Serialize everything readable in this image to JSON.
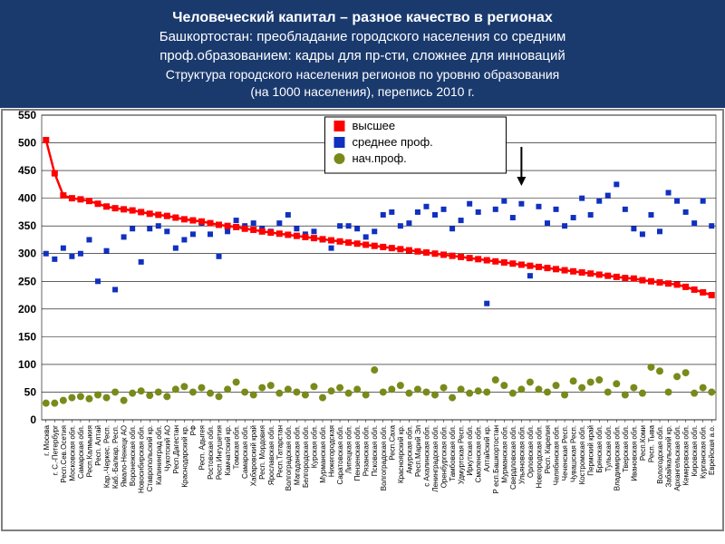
{
  "header": {
    "title": "Человеческий капитал – разное качество в регионах",
    "sub1a": "Башкортостан: преобладание городского населения со средним",
    "sub1b": "проф.образованием: кадры для пр-сти, сложнее для инноваций",
    "sub2a": "Структура городского населения регионов по уровню образования",
    "sub2b": "(на 1000 населения), перепись 2010 г."
  },
  "chart": {
    "type": "scatter-line",
    "ylim": [
      0,
      550
    ],
    "ytick_step": 50,
    "grid_color": "#000000",
    "plot_border": "#808080",
    "background": "#ffffff",
    "arrow_index": 55,
    "legend": {
      "items": [
        {
          "label": "высшее",
          "type": "square",
          "color": "#ff0000"
        },
        {
          "label": "среднее проф.",
          "type": "square",
          "color": "#1030c0"
        },
        {
          "label": "нач.проф.",
          "type": "circle",
          "color": "#7a8a1a"
        }
      ]
    },
    "categories": [
      "г. Москва",
      "г. С.-Петербург",
      "Респ.Сев.Осетия",
      "Московская обл.",
      "Самарская обл.",
      "Респ.Калмыкия",
      "Респ. Алтай",
      "Кар.-Черкес. Респ.",
      "Каб.-Балкар. Респ.",
      "Ямало-Ненецк АО",
      "Воронежская обл.",
      "Новосибирская обл.",
      "Ставропольский кр.",
      "Калининград обл.",
      "Чукотский АО",
      "Респ.Дагестан",
      "Краснодарский кр.",
      "РФ",
      "Респ. Адыгея",
      "Ростовская обл.",
      "Респ.Ингушетия",
      "Камчатский кр.",
      "Томская обл.",
      "Самарская обл.",
      "Хабаровский край",
      "Респ. Мордовия",
      "Ярославская обл.",
      "Респ.Татарстан",
      "Волгоградская обл.",
      "Магаданская обл.",
      "Белгородская обл.",
      "Курская обл.",
      "Мурманская обл.",
      "Нижегородская",
      "Саратовская обл.",
      "Липецкая обл.",
      "Пензенская обл.",
      "Рязанская обл.",
      "Псковская обл.",
      "Волгоградская обл.",
      "Респ.Саха",
      "Красноярский кр.",
      "Амурская обл.",
      "Респ.Марий Эл",
      "с Ахалинская обл.",
      "Ленинградская обл.",
      "Оренбургская обл.",
      "Тамбовская обл.",
      "Удмуртская Респ.",
      "Иркутская обл.",
      "Смоленская обл.",
      "Алтайский кр.",
      "Р есп.Башкортостан",
      "Мурманская обл.",
      "Свердловская обл.",
      "Ульяновская обл.",
      "Орловская обл.",
      "Новгородская обл.",
      "Респ. Карелия",
      "Челябинская обл.",
      "Чеченская Респ.",
      "Чувашская Респ.",
      "Костромская обл.",
      "Пермский край",
      "Брянская обл.",
      "Тульская обл.",
      "Владимирская обл.",
      "Тверская обл.",
      "Ивановская обл.",
      "Респ.Коми",
      "Респ. Тыва",
      "Вологодская обл.",
      "Забайкальский кр.",
      "Архангельская обл.",
      "Кемеровская обл.",
      "Кировская обл.",
      "Курганская обл.",
      "Еврейская а.о."
    ],
    "series": {
      "higher": {
        "color": "#ff0000",
        "marker": "square",
        "marker_size": 7,
        "connect": true,
        "line_width": 2.5,
        "values": [
          505,
          445,
          405,
          400,
          398,
          395,
          390,
          385,
          382,
          380,
          378,
          375,
          372,
          370,
          368,
          365,
          362,
          360,
          358,
          355,
          352,
          350,
          348,
          345,
          343,
          340,
          338,
          336,
          334,
          332,
          330,
          328,
          326,
          324,
          322,
          320,
          318,
          316,
          314,
          312,
          310,
          308,
          306,
          304,
          302,
          300,
          298,
          296,
          294,
          292,
          290,
          288,
          286,
          284,
          282,
          280,
          278,
          276,
          274,
          272,
          270,
          268,
          266,
          264,
          262,
          260,
          258,
          256,
          255,
          252,
          250,
          248,
          246,
          244,
          240,
          235,
          230,
          225
        ]
      },
      "secondary": {
        "color": "#1030c0",
        "marker": "square",
        "marker_size": 6,
        "connect": false,
        "values": [
          300,
          290,
          310,
          295,
          300,
          325,
          250,
          305,
          235,
          330,
          345,
          285,
          345,
          350,
          340,
          310,
          325,
          335,
          355,
          335,
          295,
          340,
          360,
          350,
          355,
          345,
          340,
          355,
          370,
          345,
          335,
          340,
          325,
          310,
          350,
          350,
          345,
          330,
          340,
          370,
          375,
          350,
          355,
          375,
          385,
          370,
          380,
          345,
          360,
          390,
          375,
          210,
          380,
          395,
          365,
          390,
          260,
          385,
          355,
          380,
          350,
          365,
          400,
          370,
          395,
          405,
          425,
          380,
          345,
          335,
          370,
          340,
          410,
          395,
          375,
          355,
          395,
          350
        ]
      },
      "initial": {
        "color": "#7a8a1a",
        "marker": "circle",
        "marker_size": 8,
        "connect": false,
        "values": [
          30,
          30,
          35,
          40,
          42,
          38,
          45,
          40,
          50,
          35,
          48,
          52,
          44,
          50,
          42,
          55,
          60,
          50,
          58,
          48,
          42,
          55,
          68,
          50,
          45,
          58,
          62,
          48,
          55,
          50,
          45,
          60,
          40,
          52,
          58,
          48,
          55,
          45,
          90,
          50,
          55,
          62,
          48,
          55,
          50,
          45,
          58,
          40,
          55,
          48,
          52,
          50,
          72,
          62,
          48,
          55,
          68,
          55,
          50,
          62,
          45,
          70,
          58,
          68,
          72,
          50,
          65,
          45,
          58,
          48,
          95,
          88,
          50,
          78,
          85,
          48,
          58,
          50
        ]
      }
    }
  }
}
